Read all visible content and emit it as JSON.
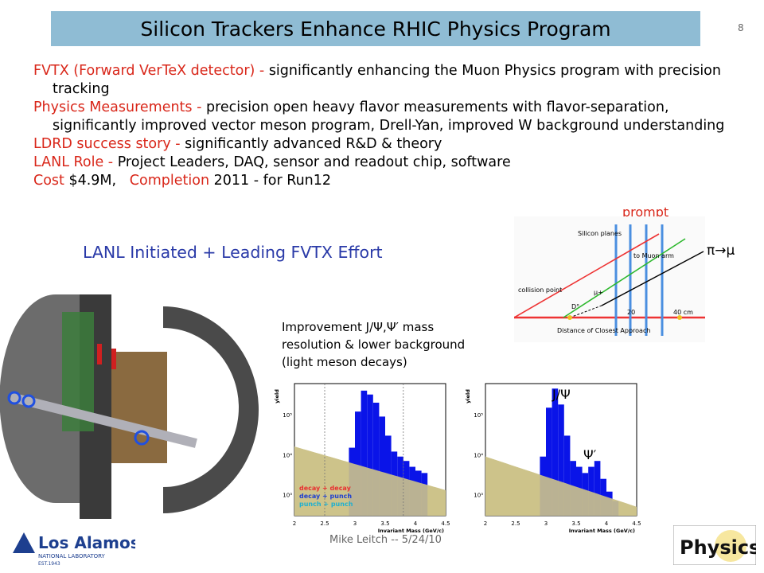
{
  "slide": {
    "title": "Silicon Trackers Enhance RHIC Physics Program",
    "number": "8",
    "footer": "Mike Leitch -- 5/24/10"
  },
  "bullets": [
    {
      "head": "FVTX (Forward VerTeX detector) - ",
      "body": "significantly enhancing the Muon Physics program with precision tracking"
    },
    {
      "head": "Physics Measurements - ",
      "body": "precision open heavy flavor measurements with flavor-separation, significantly improved vector meson program, Drell-Yan, improved W background understanding"
    },
    {
      "head": "LDRD success story - ",
      "body": "significantly advanced R&D & theory"
    },
    {
      "head": "LANL Role - ",
      "body": "Project Leaders, DAQ, sensor and readout chip, software"
    }
  ],
  "cost_line": {
    "cost_label": "Cost",
    "cost_value": " $4.9M,   ",
    "completion_label": "Completion",
    "completion_value": " 2011 - for Run12"
  },
  "lanl_lead": "LANL Initiated + Leading FVTX Effort",
  "diagram": {
    "prompt_label": "prompt",
    "pimu_label": "π→μ",
    "silicon_planes": "Silicon planes",
    "to_muon_arm": "to Muon arm",
    "collision_point": "collision\npoint",
    "d_meson": "D°",
    "mu_plus": "μ+",
    "dca": "Distance of Closest Approach",
    "tick_20": "20",
    "tick_40": "40 cm"
  },
  "improvement_text": [
    "Improvement J/Ψ,Ψ′ mass",
    "resolution & lower background",
    "(light meson decays)"
  ],
  "plot_labels": {
    "jpsi": "J/Ψ",
    "psi_prime": "Ψ′",
    "y_axis": "yield",
    "x_axis": "Invariant Mass (GeV/c)",
    "legend": [
      "decay + decay",
      "decay + punch",
      "punch + punch"
    ],
    "legend_colors": [
      "#e83030",
      "#1f3fd0",
      "#20b0d0"
    ]
  },
  "chart_data": [
    {
      "type": "bar",
      "ylabel": "yield",
      "xlabel": "Invariant Mass (GeV/c)",
      "xlim": [
        2,
        4.5
      ],
      "yscale": "log",
      "ylim": [
        300,
        600000
      ],
      "x_ticks": [
        "2",
        "2.5",
        "3",
        "3.5",
        "4",
        "4.5"
      ],
      "y_ticks": [
        "10³",
        "10⁴",
        "10⁵"
      ],
      "bin_edges": [
        2.9,
        3.0,
        3.1,
        3.2,
        3.3,
        3.4,
        3.5,
        3.6,
        3.7,
        3.8,
        3.9,
        4.0,
        4.1,
        4.2
      ],
      "signal": [
        15000,
        120000,
        400000,
        320000,
        200000,
        90000,
        30000,
        12000,
        9000,
        7000,
        5000,
        4000,
        3500
      ],
      "background": {
        "at_2": 16000,
        "at_4_5": 1300
      }
    },
    {
      "type": "bar",
      "ylabel": "yield",
      "xlabel": "Invariant Mass (GeV/c)",
      "xlim": [
        2,
        4.5
      ],
      "yscale": "log",
      "ylim": [
        300,
        600000
      ],
      "x_ticks": [
        "2",
        "2.5",
        "3",
        "3.5",
        "4",
        "4.5"
      ],
      "y_ticks": [
        "10³",
        "10⁴",
        "10⁵"
      ],
      "bin_edges": [
        2.9,
        3.0,
        3.1,
        3.2,
        3.3,
        3.4,
        3.5,
        3.6,
        3.7,
        3.8,
        3.9,
        4.0,
        4.1,
        4.2
      ],
      "signal": [
        9000,
        150000,
        450000,
        180000,
        30000,
        7000,
        5000,
        3500,
        5000,
        7000,
        2500,
        1200,
        700
      ],
      "background": {
        "at_2": 9000,
        "at_4_5": 500
      }
    }
  ],
  "logos": {
    "lanl": "Los Alamos",
    "lanl_sub": "NATIONAL LABORATORY",
    "lanl_est": "EST.1943",
    "physics": "Physics"
  }
}
